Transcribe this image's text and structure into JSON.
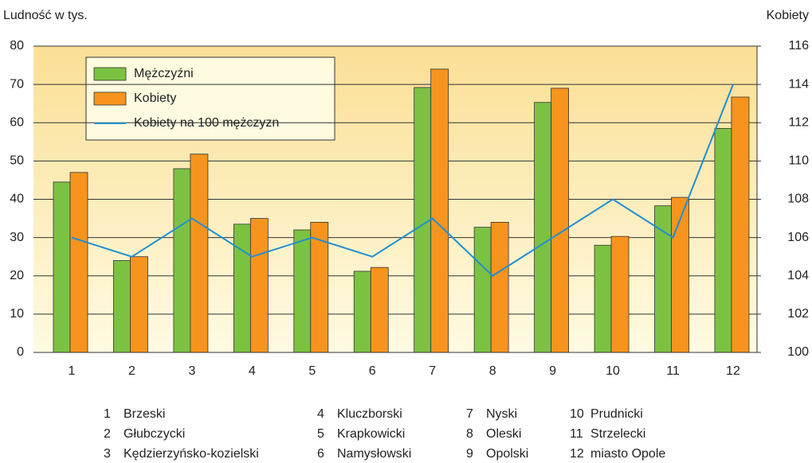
{
  "chart_data": {
    "type": "bar",
    "y_axis_label": "Ludność w tys.",
    "y2_axis_label": "Kobiety",
    "categories": [
      "1",
      "2",
      "3",
      "4",
      "5",
      "6",
      "7",
      "8",
      "9",
      "10",
      "11",
      "12"
    ],
    "series": [
      {
        "name": "Mężczyźni",
        "type": "bar",
        "color": "#7cc242",
        "values": [
          44.5,
          24,
          48,
          33.5,
          32,
          21.2,
          69.2,
          32.7,
          65.3,
          28,
          38.3,
          58.5
        ]
      },
      {
        "name": "Kobiety",
        "type": "bar",
        "color": "#f7941d",
        "values": [
          47,
          25,
          51.8,
          35,
          34,
          22.2,
          74,
          34,
          69,
          30.3,
          40.5,
          66.7
        ]
      },
      {
        "name": "Kobiety na 100 mężczyzn",
        "type": "line",
        "axis": "y2",
        "color": "#1e8fd2",
        "values": [
          106,
          105,
          107,
          105,
          106,
          105,
          107,
          104,
          106,
          108,
          106,
          114
        ]
      }
    ],
    "ylim": [
      0,
      80
    ],
    "yticks": [
      0,
      10,
      20,
      30,
      40,
      50,
      60,
      70,
      80
    ],
    "y2lim": [
      100,
      116
    ],
    "y2ticks": [
      100,
      102,
      104,
      106,
      108,
      110,
      112,
      114,
      116
    ],
    "grid": true,
    "legend": "top-left",
    "region_key": [
      {
        "number": "1",
        "name": "Brzeski"
      },
      {
        "number": "2",
        "name": "Głubczycki"
      },
      {
        "number": "3",
        "name": "Kędzierzyńsko-kozielski"
      },
      {
        "number": "4",
        "name": "Kluczborski"
      },
      {
        "number": "5",
        "name": "Krapkowicki"
      },
      {
        "number": "6",
        "name": "Namysłowski"
      },
      {
        "number": "7",
        "name": "Nyski"
      },
      {
        "number": "8",
        "name": "Oleski"
      },
      {
        "number": "9",
        "name": "Opolski"
      },
      {
        "number": "10",
        "name": "Prudnicki"
      },
      {
        "number": "11",
        "name": "Strzelecki"
      },
      {
        "number": "12",
        "name": "miasto Opole"
      }
    ]
  }
}
